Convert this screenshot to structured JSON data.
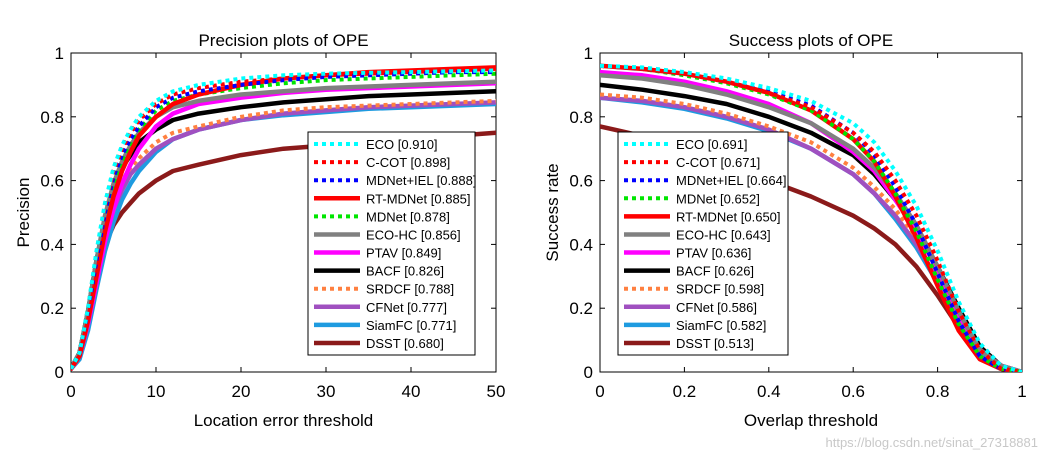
{
  "watermark": "https://blog.csdn.net/sinat_27318881",
  "chart_data": [
    {
      "type": "line",
      "title": "Precision plots of OPE",
      "xlabel": "Location error threshold",
      "ylabel": "Precision",
      "xlim": [
        0,
        50
      ],
      "ylim": [
        0,
        1
      ],
      "xticks": [
        0,
        10,
        20,
        30,
        40,
        50
      ],
      "yticks": [
        0,
        0.2,
        0.4,
        0.6,
        0.8,
        1
      ],
      "grid": false,
      "legend_position": "right",
      "x": [
        0,
        1,
        2,
        3,
        4,
        5,
        6,
        7,
        8,
        10,
        12,
        15,
        20,
        25,
        30,
        35,
        40,
        45,
        50
      ],
      "series": [
        {
          "name": "ECO [0.910]",
          "color": "#00ffff",
          "style": "dotted",
          "values": [
            0.01,
            0.06,
            0.2,
            0.38,
            0.53,
            0.64,
            0.71,
            0.76,
            0.8,
            0.85,
            0.88,
            0.9,
            0.92,
            0.93,
            0.935,
            0.938,
            0.94,
            0.943,
            0.945
          ]
        },
        {
          "name": "C-COT [0.898]",
          "color": "#ff0000",
          "style": "dotted",
          "values": [
            0.01,
            0.06,
            0.2,
            0.37,
            0.52,
            0.63,
            0.7,
            0.75,
            0.79,
            0.84,
            0.87,
            0.89,
            0.91,
            0.92,
            0.93,
            0.935,
            0.94,
            0.945,
            0.95
          ]
        },
        {
          "name": "MDNet+IEL [0.888]",
          "color": "#0000ff",
          "style": "dotted",
          "values": [
            0.01,
            0.06,
            0.19,
            0.35,
            0.5,
            0.61,
            0.68,
            0.73,
            0.77,
            0.83,
            0.86,
            0.88,
            0.9,
            0.915,
            0.925,
            0.93,
            0.935,
            0.94,
            0.94
          ]
        },
        {
          "name": "RT-MDNet [0.885]",
          "color": "#ff0000",
          "style": "solid",
          "values": [
            0.01,
            0.05,
            0.16,
            0.3,
            0.44,
            0.55,
            0.63,
            0.69,
            0.74,
            0.8,
            0.84,
            0.87,
            0.9,
            0.92,
            0.93,
            0.94,
            0.945,
            0.95,
            0.955
          ]
        },
        {
          "name": "MDNet [0.878]",
          "color": "#00e600",
          "style": "dotted",
          "values": [
            0.01,
            0.06,
            0.18,
            0.34,
            0.48,
            0.59,
            0.66,
            0.71,
            0.76,
            0.82,
            0.85,
            0.87,
            0.89,
            0.905,
            0.915,
            0.92,
            0.925,
            0.93,
            0.935
          ]
        },
        {
          "name": "ECO-HC [0.856]",
          "color": "#808080",
          "style": "solid",
          "values": [
            0.01,
            0.06,
            0.19,
            0.35,
            0.49,
            0.59,
            0.66,
            0.71,
            0.75,
            0.8,
            0.83,
            0.85,
            0.87,
            0.88,
            0.89,
            0.895,
            0.9,
            0.905,
            0.91
          ]
        },
        {
          "name": "PTAV [0.849]",
          "color": "#ff00ff",
          "style": "solid",
          "values": [
            0.01,
            0.05,
            0.15,
            0.28,
            0.41,
            0.51,
            0.59,
            0.65,
            0.7,
            0.77,
            0.81,
            0.84,
            0.86,
            0.875,
            0.885,
            0.89,
            0.895,
            0.9,
            0.905
          ]
        },
        {
          "name": "BACF [0.826]",
          "color": "#000000",
          "style": "solid",
          "values": [
            0.01,
            0.06,
            0.19,
            0.35,
            0.48,
            0.58,
            0.64,
            0.68,
            0.72,
            0.76,
            0.79,
            0.81,
            0.83,
            0.845,
            0.855,
            0.865,
            0.87,
            0.875,
            0.88
          ]
        },
        {
          "name": "SRDCF [0.788]",
          "color": "#ff8040",
          "style": "dotted",
          "values": [
            0.01,
            0.06,
            0.18,
            0.33,
            0.45,
            0.54,
            0.6,
            0.64,
            0.67,
            0.72,
            0.75,
            0.77,
            0.8,
            0.82,
            0.83,
            0.835,
            0.84,
            0.845,
            0.85
          ]
        },
        {
          "name": "CFNet [0.777]",
          "color": "#a050c0",
          "style": "solid",
          "values": [
            0.01,
            0.05,
            0.16,
            0.3,
            0.42,
            0.51,
            0.57,
            0.62,
            0.65,
            0.7,
            0.73,
            0.76,
            0.79,
            0.81,
            0.82,
            0.83,
            0.835,
            0.84,
            0.845
          ]
        },
        {
          "name": "SiamFC [0.771]",
          "color": "#1e9be0",
          "style": "solid",
          "values": [
            0.01,
            0.04,
            0.13,
            0.26,
            0.38,
            0.47,
            0.54,
            0.59,
            0.63,
            0.69,
            0.73,
            0.76,
            0.79,
            0.805,
            0.815,
            0.825,
            0.83,
            0.835,
            0.84
          ]
        },
        {
          "name": "DSST [0.680]",
          "color": "#8b1a1a",
          "style": "solid",
          "values": [
            0.01,
            0.06,
            0.18,
            0.31,
            0.4,
            0.46,
            0.5,
            0.53,
            0.56,
            0.6,
            0.63,
            0.65,
            0.68,
            0.7,
            0.71,
            0.72,
            0.73,
            0.74,
            0.75
          ]
        }
      ]
    },
    {
      "type": "line",
      "title": "Success plots of OPE",
      "xlabel": "Overlap threshold",
      "ylabel": "Success rate",
      "xlim": [
        0,
        1
      ],
      "ylim": [
        0,
        1
      ],
      "xticks": [
        0,
        0.2,
        0.4,
        0.6,
        0.8,
        1
      ],
      "yticks": [
        0,
        0.2,
        0.4,
        0.6,
        0.8,
        1
      ],
      "grid": false,
      "legend_position": "left",
      "x": [
        0,
        0.1,
        0.2,
        0.3,
        0.4,
        0.5,
        0.6,
        0.65,
        0.7,
        0.75,
        0.8,
        0.85,
        0.9,
        0.95,
        1.0
      ],
      "series": [
        {
          "name": "ECO [0.691]",
          "color": "#00ffff",
          "style": "dotted",
          "values": [
            0.96,
            0.955,
            0.94,
            0.92,
            0.89,
            0.85,
            0.78,
            0.72,
            0.63,
            0.52,
            0.38,
            0.22,
            0.09,
            0.02,
            0.0
          ]
        },
        {
          "name": "C-COT [0.671]",
          "color": "#ff0000",
          "style": "dotted",
          "values": [
            0.96,
            0.95,
            0.935,
            0.91,
            0.875,
            0.83,
            0.75,
            0.69,
            0.6,
            0.49,
            0.35,
            0.19,
            0.07,
            0.01,
            0.0
          ]
        },
        {
          "name": "MDNet+IEL [0.664]",
          "color": "#0000ff",
          "style": "dotted",
          "values": [
            0.96,
            0.95,
            0.935,
            0.91,
            0.88,
            0.835,
            0.75,
            0.68,
            0.58,
            0.46,
            0.31,
            0.16,
            0.05,
            0.01,
            0.0
          ]
        },
        {
          "name": "MDNet [0.652]",
          "color": "#00e600",
          "style": "dotted",
          "values": [
            0.96,
            0.95,
            0.93,
            0.905,
            0.87,
            0.82,
            0.73,
            0.66,
            0.56,
            0.44,
            0.29,
            0.15,
            0.05,
            0.01,
            0.0
          ]
        },
        {
          "name": "RT-MDNet [0.650]",
          "color": "#ff0000",
          "style": "solid",
          "values": [
            0.96,
            0.95,
            0.935,
            0.91,
            0.875,
            0.82,
            0.73,
            0.66,
            0.55,
            0.42,
            0.27,
            0.13,
            0.04,
            0.01,
            0.0
          ]
        },
        {
          "name": "ECO-HC [0.643]",
          "color": "#808080",
          "style": "solid",
          "values": [
            0.93,
            0.92,
            0.9,
            0.87,
            0.83,
            0.78,
            0.7,
            0.64,
            0.56,
            0.46,
            0.33,
            0.19,
            0.07,
            0.02,
            0.0
          ]
        },
        {
          "name": "PTAV [0.636]",
          "color": "#ff00ff",
          "style": "solid",
          "values": [
            0.94,
            0.93,
            0.91,
            0.88,
            0.84,
            0.78,
            0.69,
            0.63,
            0.54,
            0.44,
            0.32,
            0.18,
            0.07,
            0.02,
            0.0
          ]
        },
        {
          "name": "BACF [0.626]",
          "color": "#000000",
          "style": "solid",
          "values": [
            0.9,
            0.885,
            0.865,
            0.84,
            0.8,
            0.75,
            0.68,
            0.62,
            0.54,
            0.45,
            0.33,
            0.2,
            0.08,
            0.02,
            0.0
          ]
        },
        {
          "name": "SRDCF [0.598]",
          "color": "#ff8040",
          "style": "dotted",
          "values": [
            0.87,
            0.86,
            0.84,
            0.81,
            0.77,
            0.72,
            0.64,
            0.58,
            0.51,
            0.42,
            0.3,
            0.18,
            0.07,
            0.02,
            0.0
          ]
        },
        {
          "name": "CFNet [0.586]",
          "color": "#a050c0",
          "style": "solid",
          "values": [
            0.86,
            0.85,
            0.83,
            0.8,
            0.76,
            0.7,
            0.62,
            0.56,
            0.49,
            0.4,
            0.29,
            0.17,
            0.07,
            0.02,
            0.0
          ]
        },
        {
          "name": "SiamFC [0.582]",
          "color": "#1e9be0",
          "style": "solid",
          "values": [
            0.86,
            0.845,
            0.825,
            0.795,
            0.755,
            0.7,
            0.62,
            0.56,
            0.48,
            0.39,
            0.28,
            0.16,
            0.06,
            0.01,
            0.0
          ]
        },
        {
          "name": "DSST [0.513]",
          "color": "#8b1a1a",
          "style": "solid",
          "values": [
            0.77,
            0.74,
            0.7,
            0.65,
            0.6,
            0.55,
            0.49,
            0.45,
            0.4,
            0.33,
            0.24,
            0.14,
            0.05,
            0.01,
            0.0
          ]
        }
      ]
    }
  ]
}
